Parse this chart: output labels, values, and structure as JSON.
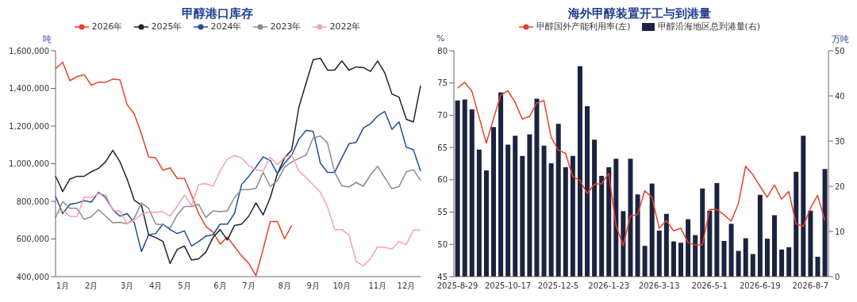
{
  "chart_data": [
    {
      "type": "line",
      "title": "甲醇港口库存",
      "ylabel": "吨",
      "legend": "top",
      "grid": false,
      "marker": "none",
      "categories": [
        null,
        "1月",
        null,
        null,
        null,
        "2月",
        null,
        null,
        null,
        null,
        "3月",
        null,
        null,
        null,
        "4月",
        null,
        null,
        null,
        "5月",
        null,
        null,
        null,
        null,
        "6月",
        null,
        null,
        null,
        "7月",
        null,
        null,
        null,
        null,
        "8月",
        null,
        null,
        null,
        "9月",
        null,
        null,
        null,
        "10月",
        null,
        null,
        null,
        null,
        "11月",
        null,
        null,
        null,
        "12月",
        null,
        null
      ],
      "ylim": [
        400000,
        1600000
      ],
      "yticks": [
        {
          "value": 400000,
          "label": "400,000"
        },
        {
          "value": 600000,
          "label": "600,000"
        },
        {
          "value": 800000,
          "label": "800,000"
        },
        {
          "value": 1000000,
          "label": "1,000,000"
        },
        {
          "value": 1200000,
          "label": "1,200,000"
        },
        {
          "value": 1400000,
          "label": "1,400,000"
        },
        {
          "value": 1600000,
          "label": "1,600,000"
        }
      ],
      "series": [
        {
          "name": "2026年",
          "color": "#e8412c",
          "values": [
            1504000,
            1539000,
            1441000,
            1462000,
            1473000,
            1417000,
            1433000,
            1433000,
            1449000,
            1445000,
            1313000,
            1264000,
            1158000,
            1036000,
            1031000,
            965000,
            978000,
            922000,
            922000,
            834000,
            735000,
            667000,
            636000,
            573000,
            610000,
            560000,
            510000,
            470000,
            405000,
            545000,
            693000,
            693000,
            601000,
            672000,
            null,
            null,
            null,
            null,
            null,
            null,
            null,
            null,
            null,
            null,
            null,
            null,
            null,
            null,
            null,
            null,
            null,
            null
          ]
        },
        {
          "name": "2025年",
          "color": "#1f2233",
          "values": [
            935000,
            852000,
            918000,
            933000,
            933000,
            957000,
            975000,
            1010000,
            1071000,
            1010000,
            918000,
            806000,
            780000,
            622000,
            608000,
            587000,
            470000,
            545000,
            563000,
            488000,
            495000,
            530000,
            608000,
            650000,
            594000,
            672000,
            679000,
            721000,
            792000,
            728000,
            820000,
            947000,
            1031000,
            1074000,
            1300000,
            1427000,
            1553000,
            1560000,
            1497000,
            1497000,
            1546000,
            1497000,
            1514000,
            1511000,
            1490000,
            1546000,
            1483000,
            1370000,
            1353000,
            1236000,
            1222000,
            1415000
          ]
        },
        {
          "name": "2024年",
          "color": "#1f4e96",
          "values": [
            827000,
            735000,
            784000,
            791000,
            803000,
            796000,
            848000,
            820000,
            756000,
            721000,
            735000,
            686000,
            533000,
            622000,
            629000,
            679000,
            650000,
            629000,
            643000,
            563000,
            587000,
            615000,
            622000,
            679000,
            679000,
            735000,
            890000,
            933000,
            982000,
            1036000,
            1017000,
            947000,
            1003000,
            1045000,
            1130000,
            1177000,
            1172000,
            1003000,
            954000,
            954000,
            1031000,
            1106000,
            1113000,
            1189000,
            1212000,
            1254000,
            1277000,
            1182000,
            1222000,
            1088000,
            1074000,
            961000
          ]
        },
        {
          "name": "2023年",
          "color": "#8c8c8c",
          "values": [
            714000,
            799000,
            763000,
            763000,
            704000,
            718000,
            756000,
            721000,
            686000,
            688000,
            681000,
            710000,
            791000,
            763000,
            679000,
            676000,
            657000,
            728000,
            773000,
            773000,
            784000,
            714000,
            749000,
            745000,
            749000,
            820000,
            862000,
            862000,
            869000,
            954000,
            879000,
            911000,
            982000,
            1010000,
            1028000,
            1045000,
            1137000,
            1147000,
            1109000,
            954000,
            883000,
            876000,
            900000,
            880000,
            940000,
            986000,
            926000,
            867000,
            879000,
            957000,
            968000,
            911000
          ]
        },
        {
          "name": "2022年",
          "color": "#f4a0b5",
          "values": [
            728000,
            752000,
            721000,
            718000,
            823000,
            820000,
            841000,
            834000,
            752000,
            749000,
            681000,
            700000,
            731000,
            742000,
            742000,
            745000,
            721000,
            774000,
            834000,
            777000,
            890000,
            894000,
            880000,
            961000,
            1024000,
            1043000,
            1031000,
            989000,
            968000,
            961000,
            1034000,
            996000,
            1034000,
            1048000,
            961000,
            926000,
            887000,
            848000,
            770000,
            650000,
            650000,
            622000,
            481000,
            457000,
            495000,
            559000,
            555000,
            547000,
            587000,
            570000,
            648000,
            648000
          ]
        }
      ]
    },
    {
      "type": "bar",
      "title": "海外甲醇装置开工与到港量",
      "ylabel": "%",
      "y2label": "万吨",
      "legend": "top",
      "grid": false,
      "marker": "none",
      "categories": [
        "2025-8-29",
        null,
        null,
        null,
        null,
        null,
        null,
        "2025-10-17",
        null,
        null,
        null,
        null,
        null,
        null,
        "2025-12-5",
        null,
        null,
        null,
        null,
        null,
        null,
        "2026-1-23",
        null,
        null,
        null,
        null,
        null,
        null,
        "2026-3-13",
        null,
        null,
        null,
        null,
        null,
        null,
        "2026-5-1",
        null,
        null,
        null,
        null,
        null,
        null,
        "2026-6-19",
        null,
        null,
        null,
        null,
        null,
        null,
        "2026-8-7",
        null,
        null
      ],
      "ylim": [
        45,
        80
      ],
      "yticks": [
        45,
        50,
        55,
        60,
        65,
        70,
        75,
        80
      ],
      "y2lim": [
        0,
        50
      ],
      "y2ticks": [
        0,
        10,
        20,
        30,
        40,
        50
      ],
      "series": [
        {
          "name": "甲醇国外产能利用率(左)",
          "type": "line",
          "axis": "y",
          "color": "#e8412c",
          "values": [
            74.2,
            75.1,
            73.7,
            69.7,
            65.7,
            69.5,
            73.1,
            73.8,
            72.0,
            69.4,
            69.8,
            71.9,
            72.3,
            66.6,
            64.6,
            64.1,
            60.5,
            59.9,
            57.9,
            59.3,
            59.4,
            61.0,
            53.0,
            49.8,
            54.4,
            54.6,
            58.3,
            57.3,
            52.5,
            53.7,
            52.1,
            52.5,
            50.3,
            49.9,
            49.9,
            55.4,
            55.4,
            54.6,
            53.6,
            56.3,
            62.1,
            60.8,
            59.0,
            57.3,
            59.2,
            57.0,
            58.2,
            53.2,
            52.8,
            55.6,
            57.6,
            53.7
          ]
        },
        {
          "name": "甲醇沿海地区总到港量(右)",
          "type": "bar",
          "axis": "y2",
          "color": "#1c2340",
          "values": [
            39.0,
            39.2,
            37.0,
            28.1,
            23.5,
            33.1,
            40.8,
            29.2,
            31.2,
            26.7,
            31.5,
            39.4,
            29.0,
            25.1,
            33.8,
            24.2,
            26.7,
            46.6,
            37.7,
            30.3,
            22.3,
            24.2,
            26.1,
            14.5,
            26.1,
            18.2,
            6.8,
            20.6,
            10.2,
            13.9,
            7.8,
            7.5,
            12.7,
            9.2,
            19.5,
            14.6,
            20.7,
            7.9,
            11.7,
            5.7,
            8.5,
            5.0,
            18.1,
            8.4,
            13.6,
            6.0,
            6.5,
            23.2,
            31.2,
            14.6,
            4.4,
            23.8
          ]
        }
      ]
    }
  ]
}
